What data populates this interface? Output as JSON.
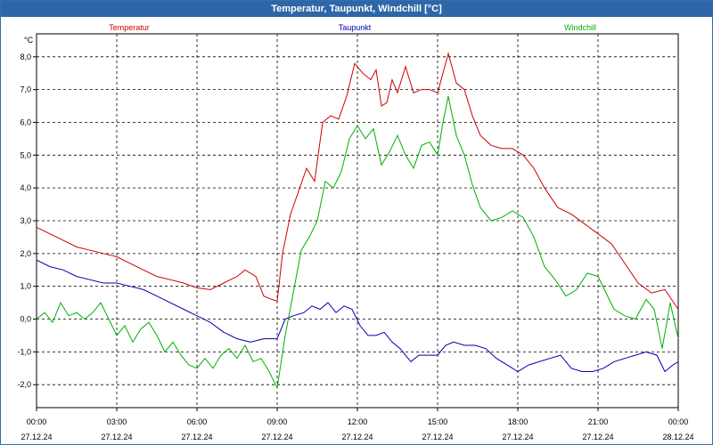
{
  "window": {
    "title": "Temperatur, Taupunkt, Windchill [°C]"
  },
  "chart_data": {
    "type": "line",
    "title": "Temperatur, Taupunkt, Windchill [°C]",
    "ylabel": "°C",
    "xlabel": "",
    "ylim": [
      -2.7,
      8.7
    ],
    "y_ticks": [
      -2,
      -1,
      0,
      1,
      2,
      3,
      4,
      5,
      6,
      7,
      8
    ],
    "y_tick_labels": [
      "-2,0",
      "-1,0",
      "0,0",
      "1,0",
      "2,0",
      "3,0",
      "4,0",
      "5,0",
      "6,0",
      "7,0",
      "8,0"
    ],
    "xlim_hours": [
      0,
      24
    ],
    "x_ticks_hours": [
      0,
      3,
      6,
      9,
      12,
      15,
      18,
      21,
      24
    ],
    "x_tick_times": [
      "00:00",
      "03:00",
      "06:00",
      "09:00",
      "12:00",
      "15:00",
      "18:00",
      "21:00",
      "00:00"
    ],
    "x_tick_dates": [
      "27.12.24",
      "27.12.24",
      "27.12.24",
      "27.12.24",
      "27.12.24",
      "27.12.24",
      "27.12.24",
      "27.12.24",
      "28.12.24"
    ],
    "grid": true,
    "legend_position": "top",
    "series": [
      {
        "name": "Temperatur",
        "color": "#cc0000",
        "points": [
          [
            0.0,
            2.8
          ],
          [
            0.5,
            2.6
          ],
          [
            1.0,
            2.4
          ],
          [
            1.5,
            2.2
          ],
          [
            2.0,
            2.1
          ],
          [
            2.5,
            2.0
          ],
          [
            3.0,
            1.9
          ],
          [
            3.5,
            1.7
          ],
          [
            4.0,
            1.5
          ],
          [
            4.5,
            1.3
          ],
          [
            5.0,
            1.2
          ],
          [
            5.5,
            1.1
          ],
          [
            6.0,
            0.95
          ],
          [
            6.5,
            0.9
          ],
          [
            7.0,
            1.1
          ],
          [
            7.5,
            1.3
          ],
          [
            7.8,
            1.5
          ],
          [
            8.2,
            1.3
          ],
          [
            8.5,
            0.7
          ],
          [
            8.8,
            0.6
          ],
          [
            9.0,
            0.55
          ],
          [
            9.2,
            2.0
          ],
          [
            9.5,
            3.2
          ],
          [
            9.8,
            3.9
          ],
          [
            10.1,
            4.6
          ],
          [
            10.4,
            4.2
          ],
          [
            10.7,
            6.0
          ],
          [
            11.0,
            6.2
          ],
          [
            11.3,
            6.1
          ],
          [
            11.6,
            6.8
          ],
          [
            11.9,
            7.8
          ],
          [
            12.2,
            7.5
          ],
          [
            12.5,
            7.3
          ],
          [
            12.7,
            7.6
          ],
          [
            12.9,
            6.5
          ],
          [
            13.1,
            6.6
          ],
          [
            13.3,
            7.3
          ],
          [
            13.5,
            6.9
          ],
          [
            13.8,
            7.7
          ],
          [
            14.1,
            6.9
          ],
          [
            14.4,
            7.0
          ],
          [
            14.7,
            7.0
          ],
          [
            15.0,
            6.9
          ],
          [
            15.2,
            7.5
          ],
          [
            15.4,
            8.1
          ],
          [
            15.7,
            7.2
          ],
          [
            16.0,
            7.0
          ],
          [
            16.3,
            6.2
          ],
          [
            16.6,
            5.6
          ],
          [
            17.0,
            5.3
          ],
          [
            17.4,
            5.2
          ],
          [
            17.8,
            5.2
          ],
          [
            18.2,
            5.0
          ],
          [
            18.6,
            4.6
          ],
          [
            19.0,
            4.0
          ],
          [
            19.5,
            3.4
          ],
          [
            20.0,
            3.2
          ],
          [
            20.5,
            2.9
          ],
          [
            21.0,
            2.6
          ],
          [
            21.5,
            2.3
          ],
          [
            22.0,
            1.7
          ],
          [
            22.5,
            1.1
          ],
          [
            23.0,
            0.8
          ],
          [
            23.5,
            0.9
          ],
          [
            24.0,
            0.3
          ]
        ]
      },
      {
        "name": "Taupunkt",
        "color": "#0000b0",
        "points": [
          [
            0.0,
            1.8
          ],
          [
            0.5,
            1.6
          ],
          [
            1.0,
            1.5
          ],
          [
            1.5,
            1.3
          ],
          [
            2.0,
            1.2
          ],
          [
            2.5,
            1.1
          ],
          [
            3.0,
            1.1
          ],
          [
            3.5,
            1.0
          ],
          [
            4.0,
            0.9
          ],
          [
            4.5,
            0.7
          ],
          [
            5.0,
            0.5
          ],
          [
            5.5,
            0.3
          ],
          [
            6.0,
            0.1
          ],
          [
            6.5,
            -0.1
          ],
          [
            7.0,
            -0.4
          ],
          [
            7.5,
            -0.6
          ],
          [
            8.0,
            -0.7
          ],
          [
            8.5,
            -0.6
          ],
          [
            9.0,
            -0.6
          ],
          [
            9.3,
            0.0
          ],
          [
            9.6,
            0.1
          ],
          [
            10.0,
            0.2
          ],
          [
            10.3,
            0.4
          ],
          [
            10.6,
            0.3
          ],
          [
            10.9,
            0.5
          ],
          [
            11.2,
            0.2
          ],
          [
            11.5,
            0.4
          ],
          [
            11.8,
            0.3
          ],
          [
            12.1,
            -0.2
          ],
          [
            12.4,
            -0.5
          ],
          [
            12.7,
            -0.5
          ],
          [
            13.0,
            -0.4
          ],
          [
            13.3,
            -0.7
          ],
          [
            13.6,
            -0.9
          ],
          [
            14.0,
            -1.3
          ],
          [
            14.3,
            -1.1
          ],
          [
            14.6,
            -1.1
          ],
          [
            15.0,
            -1.1
          ],
          [
            15.3,
            -0.8
          ],
          [
            15.6,
            -0.7
          ],
          [
            16.0,
            -0.8
          ],
          [
            16.4,
            -0.8
          ],
          [
            16.8,
            -0.9
          ],
          [
            17.2,
            -1.2
          ],
          [
            17.6,
            -1.4
          ],
          [
            18.0,
            -1.6
          ],
          [
            18.4,
            -1.4
          ],
          [
            18.8,
            -1.3
          ],
          [
            19.2,
            -1.2
          ],
          [
            19.6,
            -1.1
          ],
          [
            20.0,
            -1.5
          ],
          [
            20.4,
            -1.6
          ],
          [
            20.8,
            -1.6
          ],
          [
            21.2,
            -1.5
          ],
          [
            21.6,
            -1.3
          ],
          [
            22.0,
            -1.2
          ],
          [
            22.4,
            -1.1
          ],
          [
            22.8,
            -1.0
          ],
          [
            23.2,
            -1.1
          ],
          [
            23.5,
            -1.6
          ],
          [
            23.8,
            -1.4
          ],
          [
            24.0,
            -1.3
          ]
        ]
      },
      {
        "name": "Windchill",
        "color": "#00b000",
        "points": [
          [
            0.0,
            0.0
          ],
          [
            0.3,
            0.2
          ],
          [
            0.6,
            -0.1
          ],
          [
            0.9,
            0.5
          ],
          [
            1.2,
            0.1
          ],
          [
            1.5,
            0.2
          ],
          [
            1.8,
            0.0
          ],
          [
            2.1,
            0.2
          ],
          [
            2.4,
            0.5
          ],
          [
            2.7,
            0.0
          ],
          [
            3.0,
            -0.5
          ],
          [
            3.3,
            -0.2
          ],
          [
            3.6,
            -0.7
          ],
          [
            3.9,
            -0.3
          ],
          [
            4.2,
            -0.1
          ],
          [
            4.5,
            -0.5
          ],
          [
            4.8,
            -1.0
          ],
          [
            5.1,
            -0.7
          ],
          [
            5.4,
            -1.1
          ],
          [
            5.7,
            -1.4
          ],
          [
            6.0,
            -1.5
          ],
          [
            6.3,
            -1.2
          ],
          [
            6.6,
            -1.5
          ],
          [
            6.9,
            -1.1
          ],
          [
            7.2,
            -0.9
          ],
          [
            7.5,
            -1.2
          ],
          [
            7.8,
            -0.8
          ],
          [
            8.1,
            -1.3
          ],
          [
            8.4,
            -1.2
          ],
          [
            8.7,
            -1.6
          ],
          [
            9.0,
            -2.1
          ],
          [
            9.3,
            -0.5
          ],
          [
            9.6,
            0.8
          ],
          [
            9.9,
            2.1
          ],
          [
            10.2,
            2.5
          ],
          [
            10.5,
            3.0
          ],
          [
            10.8,
            4.2
          ],
          [
            11.1,
            4.0
          ],
          [
            11.4,
            4.5
          ],
          [
            11.7,
            5.5
          ],
          [
            12.0,
            5.9
          ],
          [
            12.3,
            5.5
          ],
          [
            12.6,
            5.8
          ],
          [
            12.9,
            4.7
          ],
          [
            13.2,
            5.1
          ],
          [
            13.5,
            5.6
          ],
          [
            13.8,
            5.0
          ],
          [
            14.1,
            4.6
          ],
          [
            14.4,
            5.3
          ],
          [
            14.7,
            5.4
          ],
          [
            15.0,
            5.0
          ],
          [
            15.2,
            6.0
          ],
          [
            15.4,
            6.8
          ],
          [
            15.7,
            5.6
          ],
          [
            16.0,
            5.0
          ],
          [
            16.3,
            4.1
          ],
          [
            16.6,
            3.4
          ],
          [
            17.0,
            3.0
          ],
          [
            17.4,
            3.1
          ],
          [
            17.8,
            3.3
          ],
          [
            18.2,
            3.1
          ],
          [
            18.6,
            2.5
          ],
          [
            19.0,
            1.6
          ],
          [
            19.4,
            1.2
          ],
          [
            19.8,
            0.7
          ],
          [
            20.2,
            0.9
          ],
          [
            20.6,
            1.4
          ],
          [
            21.0,
            1.3
          ],
          [
            21.3,
            0.8
          ],
          [
            21.6,
            0.3
          ],
          [
            22.0,
            0.1
          ],
          [
            22.4,
            0.0
          ],
          [
            22.8,
            0.6
          ],
          [
            23.1,
            0.3
          ],
          [
            23.4,
            -0.9
          ],
          [
            23.7,
            0.5
          ],
          [
            24.0,
            -0.6
          ]
        ]
      }
    ]
  }
}
